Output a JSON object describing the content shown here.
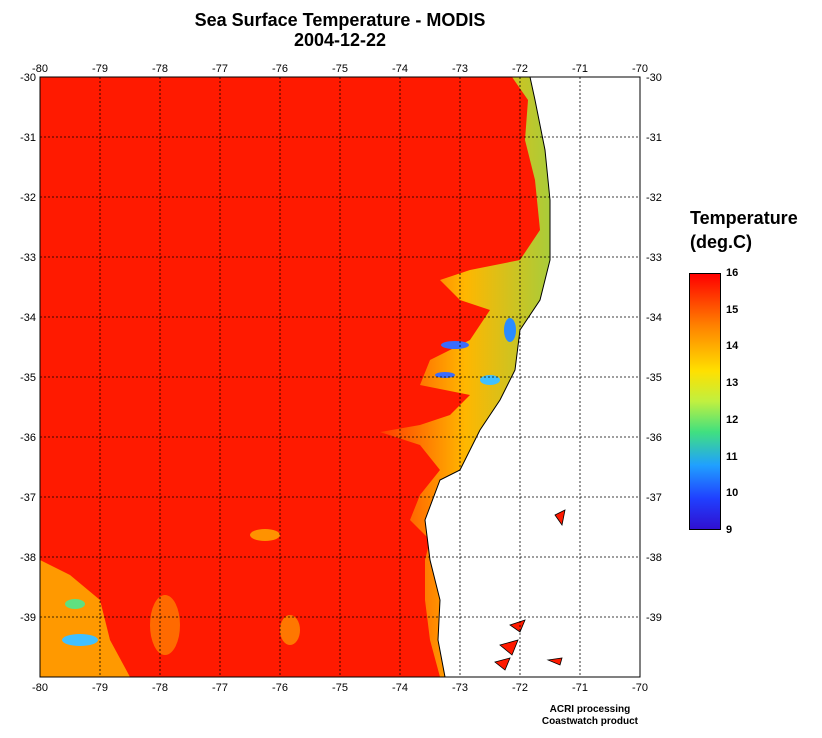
{
  "title": {
    "line1": "Sea Surface Temperature - MODIS",
    "line2": "2004-12-22"
  },
  "map": {
    "lon_ticks": [
      "-80",
      "-79",
      "-78",
      "-77",
      "-76",
      "-75",
      "-74",
      "-73",
      "-72",
      "-71",
      "-70"
    ],
    "lat_ticks": [
      "-30",
      "-31",
      "-32",
      "-33",
      "-34",
      "-35",
      "-36",
      "-37",
      "-38",
      "-39"
    ],
    "lon_range": [
      -80,
      -70
    ],
    "lat_range": [
      -30,
      -40
    ],
    "grid": "dashed",
    "land_color": "#ffffff",
    "ocean_warm_color": "#ff1a00"
  },
  "legend": {
    "title_line1": "Temperature",
    "title_line2": "(deg.C)",
    "labels": [
      "16",
      "15",
      "14",
      "13",
      "12",
      "11",
      "10",
      "9"
    ],
    "range": [
      9,
      16
    ]
  },
  "footer": {
    "line1": "ACRI processing",
    "line2": "Coastwatch product"
  }
}
